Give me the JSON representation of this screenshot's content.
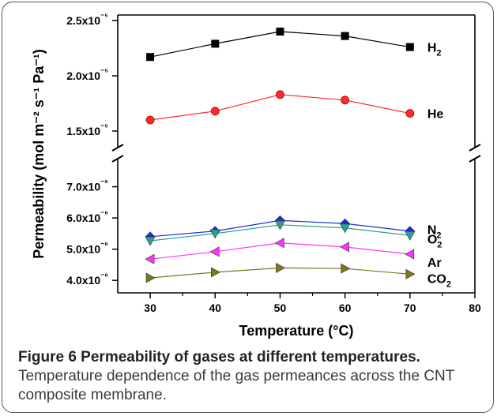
{
  "caption": {
    "title": "Figure 6 Permeability of gases at different temperatures.",
    "text": "Temperature dependence of the gas permeances across the CNT composite membrane."
  },
  "chart_data": {
    "type": "line",
    "xlabel": "Temperature (°C)",
    "ylabel": "Permeability (mol m⁻² s⁻¹ Pa⁻¹)",
    "xlim": [
      25,
      80
    ],
    "x_ticks": [
      30,
      40,
      50,
      60,
      70,
      80
    ],
    "y_axis_break": true,
    "upper_segment": {
      "ylim": [
        1.35e-05,
        2.55e-05
      ],
      "ticks": [
        1.5e-05,
        2e-05,
        2.5e-05
      ],
      "tick_labels": [
        "1.5x10⁻⁵",
        "2.0x10⁻⁵",
        "2.5x10⁻⁵"
      ]
    },
    "lower_segment": {
      "ylim": [
        3.6e-06,
        7.9e-06
      ],
      "ticks": [
        4e-06,
        5e-06,
        6e-06,
        7e-06
      ],
      "tick_labels": [
        "4.0x10⁻⁶",
        "5.0x10⁻⁶",
        "6.0x10⁻⁶",
        "7.0x10⁻⁶"
      ]
    },
    "x": [
      30,
      40,
      50,
      60,
      70
    ],
    "series": [
      {
        "name": "H₂",
        "segment": "upper",
        "marker": "square",
        "color": "#000000",
        "values": [
          2.17e-05,
          2.29e-05,
          2.4e-05,
          2.36e-05,
          2.26e-05
        ]
      },
      {
        "name": "He",
        "segment": "upper",
        "marker": "circle",
        "color": "#ff2a2a",
        "values": [
          1.6e-05,
          1.68e-05,
          1.83e-05,
          1.78e-05,
          1.66e-05
        ]
      },
      {
        "name": "N₂",
        "segment": "lower",
        "marker": "diamond",
        "color": "#1f2fd6",
        "values": [
          5.4e-06,
          5.58e-06,
          5.92e-06,
          5.82e-06,
          5.58e-06
        ]
      },
      {
        "name": "O₂",
        "segment": "lower",
        "marker": "triangle-down",
        "color": "#2aa08f",
        "values": [
          5.27e-06,
          5.5e-06,
          5.78e-06,
          5.68e-06,
          5.44e-06
        ]
      },
      {
        "name": "Ar",
        "segment": "lower",
        "marker": "triangle-left",
        "color": "#ff33ff",
        "values": [
          4.68e-06,
          4.92e-06,
          5.2e-06,
          5.07e-06,
          4.84e-06
        ]
      },
      {
        "name": "CO₂",
        "segment": "lower",
        "marker": "triangle-right",
        "color": "#7a7a1a",
        "values": [
          4.08e-06,
          4.26e-06,
          4.4e-06,
          4.38e-06,
          4.2e-06
        ]
      }
    ],
    "grid": false
  }
}
